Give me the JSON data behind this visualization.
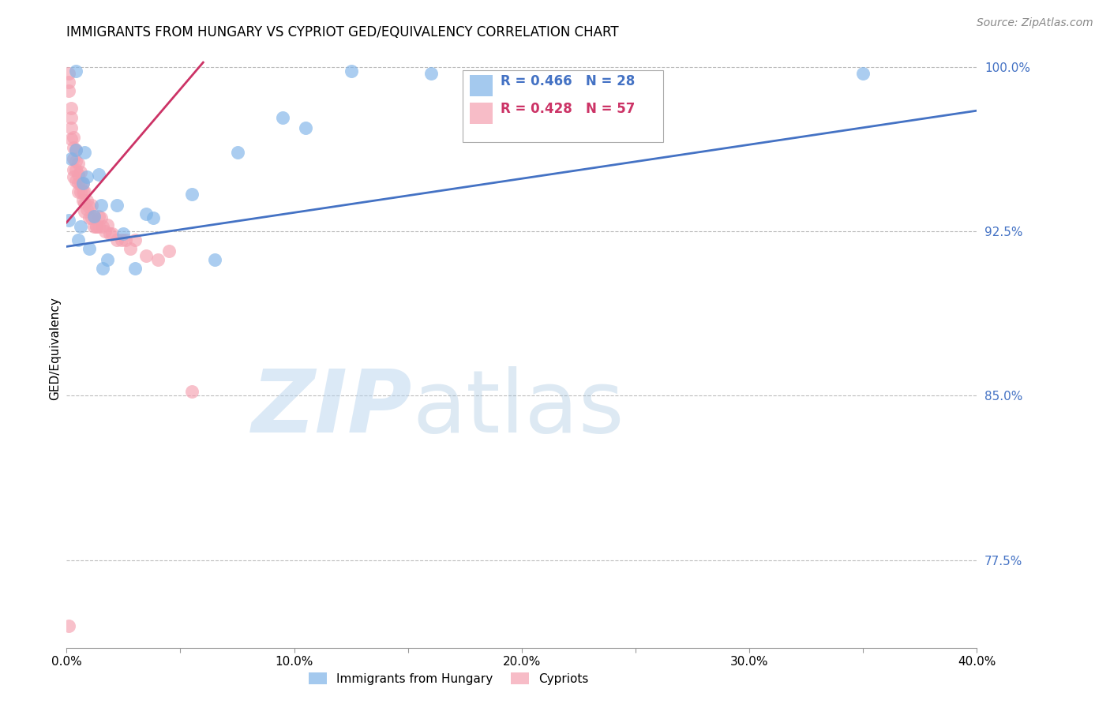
{
  "title": "IMMIGRANTS FROM HUNGARY VS CYPRIOT GED/EQUIVALENCY CORRELATION CHART",
  "source": "Source: ZipAtlas.com",
  "ylabel": "GED/Equivalency",
  "xlim": [
    0.0,
    0.4
  ],
  "ylim": [
    0.735,
    1.008
  ],
  "xticks": [
    0.0,
    0.05,
    0.1,
    0.15,
    0.2,
    0.25,
    0.3,
    0.35,
    0.4
  ],
  "xticklabels": [
    "0.0%",
    "",
    "10.0%",
    "",
    "20.0%",
    "",
    "30.0%",
    "",
    "40.0%"
  ],
  "yticks": [
    0.775,
    0.85,
    0.925,
    1.0
  ],
  "yticklabels": [
    "77.5%",
    "85.0%",
    "92.5%",
    "100.0%"
  ],
  "blue_color": "#7EB3E8",
  "pink_color": "#F5A0B0",
  "trend_blue": "#4472C4",
  "trend_pink": "#CC3366",
  "legend_R_blue": "0.466",
  "legend_N_blue": "28",
  "legend_R_pink": "0.428",
  "legend_N_pink": "57",
  "label_blue": "Immigrants from Hungary",
  "label_pink": "Cypriots",
  "grid_color": "#BBBBBB",
  "blue_x": [
    0.001,
    0.002,
    0.004,
    0.004,
    0.005,
    0.006,
    0.007,
    0.008,
    0.009,
    0.01,
    0.012,
    0.014,
    0.015,
    0.016,
    0.018,
    0.022,
    0.025,
    0.03,
    0.035,
    0.038,
    0.055,
    0.065,
    0.075,
    0.095,
    0.105,
    0.125,
    0.16,
    0.35
  ],
  "blue_y": [
    0.93,
    0.958,
    0.962,
    0.998,
    0.921,
    0.927,
    0.947,
    0.961,
    0.95,
    0.917,
    0.932,
    0.951,
    0.937,
    0.908,
    0.912,
    0.937,
    0.924,
    0.908,
    0.933,
    0.931,
    0.942,
    0.912,
    0.961,
    0.977,
    0.972,
    0.998,
    0.997,
    0.997
  ],
  "pink_x": [
    0.001,
    0.001,
    0.001,
    0.002,
    0.002,
    0.002,
    0.002,
    0.003,
    0.003,
    0.003,
    0.003,
    0.003,
    0.004,
    0.004,
    0.004,
    0.004,
    0.005,
    0.005,
    0.005,
    0.005,
    0.006,
    0.006,
    0.006,
    0.007,
    0.007,
    0.007,
    0.008,
    0.008,
    0.008,
    0.009,
    0.009,
    0.01,
    0.01,
    0.011,
    0.011,
    0.012,
    0.012,
    0.013,
    0.013,
    0.014,
    0.014,
    0.015,
    0.016,
    0.017,
    0.018,
    0.019,
    0.02,
    0.022,
    0.024,
    0.026,
    0.028,
    0.03,
    0.035,
    0.04,
    0.045,
    0.055,
    0.001
  ],
  "pink_y": [
    0.997,
    0.993,
    0.989,
    0.981,
    0.977,
    0.972,
    0.967,
    0.968,
    0.963,
    0.958,
    0.953,
    0.95,
    0.962,
    0.957,
    0.953,
    0.948,
    0.956,
    0.951,
    0.947,
    0.943,
    0.952,
    0.947,
    0.943,
    0.947,
    0.943,
    0.939,
    0.943,
    0.938,
    0.934,
    0.939,
    0.935,
    0.936,
    0.931,
    0.937,
    0.931,
    0.932,
    0.927,
    0.927,
    0.927,
    0.932,
    0.927,
    0.931,
    0.927,
    0.925,
    0.928,
    0.924,
    0.924,
    0.921,
    0.921,
    0.921,
    0.917,
    0.921,
    0.914,
    0.912,
    0.916,
    0.852,
    0.745
  ],
  "trend_blue_x0": 0.0,
  "trend_blue_x1": 0.4,
  "trend_blue_y0": 0.918,
  "trend_blue_y1": 0.98,
  "trend_pink_x0": 0.0,
  "trend_pink_x1": 0.06,
  "trend_pink_y0": 0.929,
  "trend_pink_y1": 1.002
}
